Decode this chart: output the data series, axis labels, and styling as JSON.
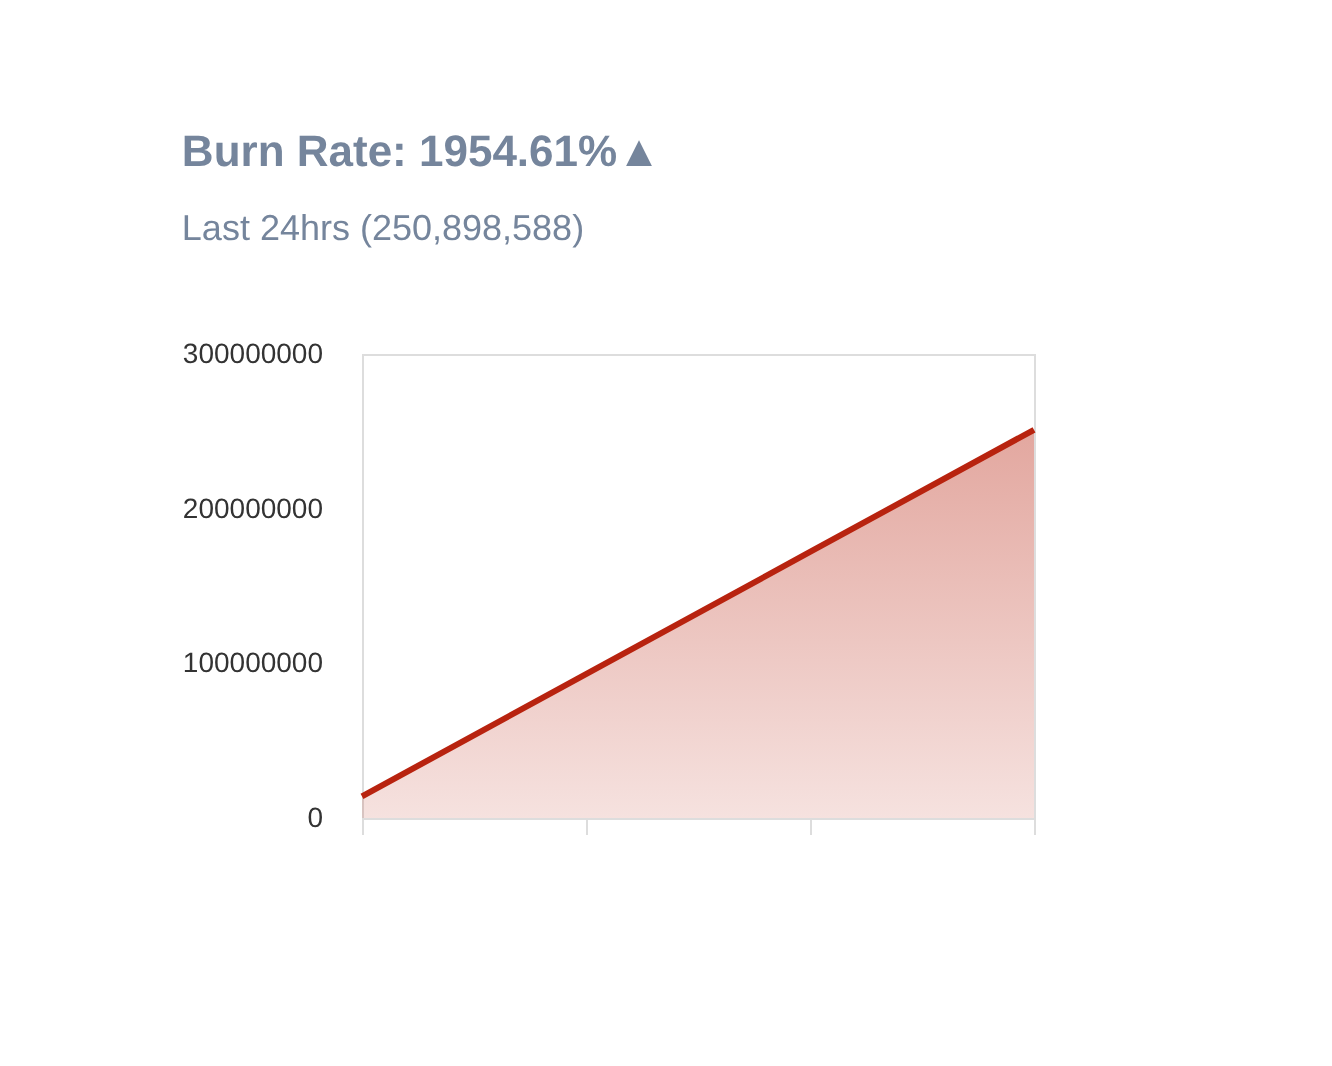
{
  "chart_data": {
    "type": "area",
    "title": "Burn Rate: 1954.61%▲",
    "subtitle": "Last 24hrs (250,898,588)",
    "categories": [
      null,
      null,
      null,
      null
    ],
    "series": [
      {
        "color": "#b8230f",
        "values": [
          14000000,
          93000000,
          172000000,
          251000000
        ]
      }
    ],
    "ylim": [
      0,
      300000000
    ],
    "yticks": [
      0,
      100000000,
      200000000,
      300000000
    ],
    "grid": false,
    "tick_labels": "y"
  }
}
